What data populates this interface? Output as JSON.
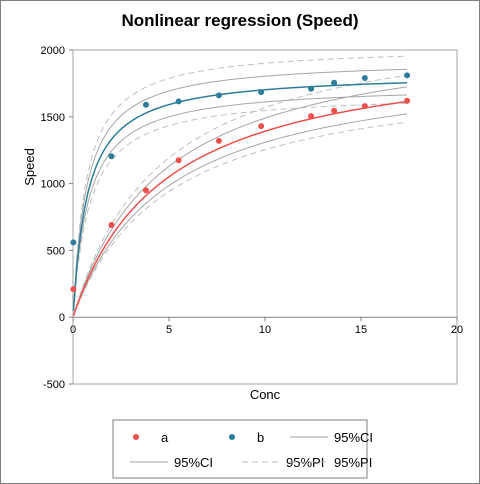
{
  "chart_data": {
    "type": "scatter",
    "title": "Nonlinear regression (Speed)",
    "xlabel": "Conc",
    "ylabel": "Speed",
    "xlim": [
      0,
      20
    ],
    "ylim": [
      -500,
      2000
    ],
    "xticks": [
      "0",
      "5",
      "10",
      "15",
      "20"
    ],
    "yticks": [
      "-500",
      "0",
      "500",
      "1000",
      "1500",
      "2000"
    ],
    "grid": false,
    "legend_position": "bottom",
    "series": [
      {
        "name": "a",
        "kind": "points",
        "color": "#f0504d",
        "points": [
          [
            0.02,
            210
          ],
          [
            2.0,
            690
          ],
          [
            3.8,
            950
          ],
          [
            5.5,
            1175
          ],
          [
            7.6,
            1320
          ],
          [
            9.8,
            1430
          ],
          [
            12.4,
            1505
          ],
          [
            13.6,
            1545
          ],
          [
            15.2,
            1580
          ],
          [
            17.4,
            1620
          ]
        ]
      },
      {
        "name": "b",
        "kind": "points",
        "color": "#2e7d9a",
        "points": [
          [
            0.02,
            560
          ],
          [
            2.0,
            1205
          ],
          [
            3.8,
            1590
          ],
          [
            5.5,
            1615
          ],
          [
            7.6,
            1660
          ],
          [
            9.8,
            1685
          ],
          [
            12.4,
            1710
          ],
          [
            13.6,
            1755
          ],
          [
            15.2,
            1790
          ],
          [
            17.4,
            1810
          ]
        ]
      },
      {
        "name": "95%CI",
        "kind": "ci",
        "color": "#a6a6a6"
      },
      {
        "name": "95%CI",
        "kind": "ci",
        "color": "#a6a6a6"
      },
      {
        "name": "95%PI",
        "kind": "pi",
        "color": "#bfbfbf"
      },
      {
        "name": "95%PI",
        "kind": "pi",
        "color": "#bfbfbf"
      }
    ],
    "fits": [
      {
        "series": "a",
        "model": "michaelis-menten",
        "vmax": 2060,
        "km": 4.8,
        "color": "#f0504d"
      },
      {
        "series": "b",
        "model": "michaelis-menten",
        "vmax": 1830,
        "km": 0.75,
        "color": "#2e7d9a"
      }
    ],
    "bands": [
      {
        "series": "a",
        "kind": "ci",
        "vmax": [
          1950,
          2190
        ],
        "km": [
          4.7,
          4.9
        ],
        "color": "#a6a6a6"
      },
      {
        "series": "a",
        "kind": "pi",
        "vmax": [
          1880,
          2290
        ],
        "km": [
          4.6,
          5.0
        ],
        "color": "#bfbfbf"
      },
      {
        "series": "b",
        "kind": "ci",
        "vmax": [
          1740,
          1930
        ],
        "km": [
          0.7,
          0.8
        ],
        "color": "#a6a6a6"
      },
      {
        "series": "b",
        "kind": "pi",
        "vmax": [
          1680,
          2030
        ],
        "km": [
          0.68,
          0.86
        ],
        "color": "#bfbfbf"
      }
    ]
  }
}
